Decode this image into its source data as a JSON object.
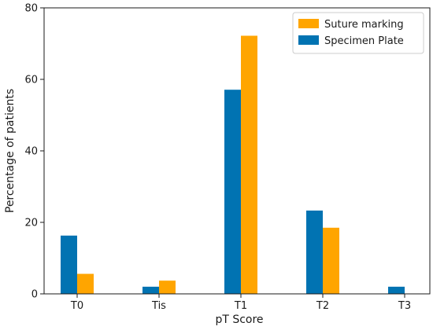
{
  "chart_data": {
    "type": "bar",
    "title": "",
    "xlabel": "pT Score",
    "ylabel": "Percentage of patients",
    "categories": [
      "T0",
      "Tis",
      "T1",
      "T2",
      "T3"
    ],
    "ylim": [
      0,
      80
    ],
    "yticks": [
      0,
      20,
      40,
      60,
      80
    ],
    "grid": false,
    "legend_position": "top-right",
    "series": [
      {
        "name": "Suture marking",
        "color": "#ffa500",
        "values": [
          5.6,
          3.7,
          72.2,
          18.5,
          0
        ]
      },
      {
        "name": "Specimen Plate",
        "color": "#0173b2",
        "values": [
          16.3,
          2.0,
          57.1,
          23.3,
          2.0
        ]
      }
    ]
  }
}
